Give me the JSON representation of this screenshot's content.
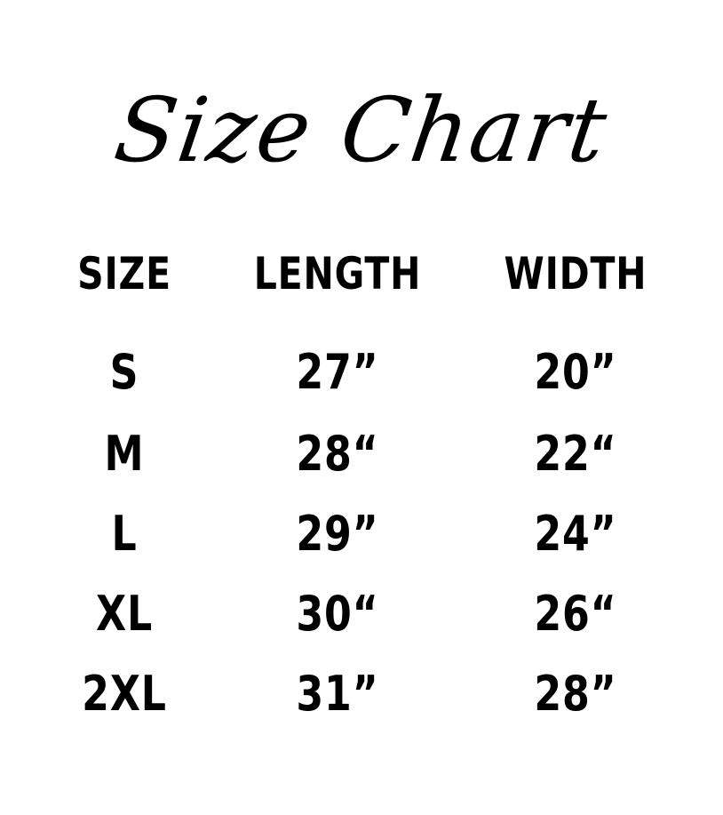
{
  "title": "Size Chart",
  "headers": [
    "SIZE",
    "LENGTH",
    "WIDTH"
  ],
  "rows": [
    {
      "size": "S",
      "length": "27”",
      "width": "20”"
    },
    {
      "size": "M",
      "length": "28“",
      "width": "22“"
    },
    {
      "size": "L",
      "length": "29”",
      "width": "24”"
    },
    {
      "size": "XL",
      "length": "30“",
      "width": "26“"
    },
    {
      "size": "2XL",
      "length": "31”",
      "width": "28”"
    }
  ]
}
